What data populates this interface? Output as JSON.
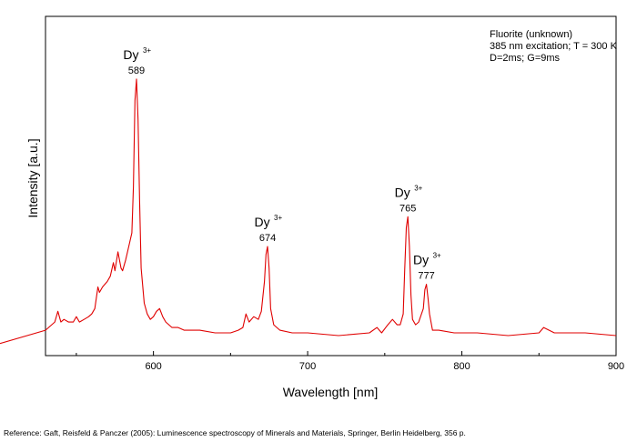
{
  "chart_data": {
    "type": "line",
    "xlabel": "Wavelength [nm]",
    "ylabel": "Intensity [a.u.]",
    "xlim": [
      530,
      900
    ],
    "ylim": [
      0,
      1.0
    ],
    "x_ticks": [
      600,
      700,
      800,
      900
    ],
    "grid": false,
    "legend": "none",
    "annotation_lines": [
      "Fluorite (unknown)",
      "385 nm excitation; T = 300 K",
      "D=2ms; G=9ms"
    ],
    "peak_labels": [
      {
        "ion": "Dy",
        "charge": "3+",
        "wavelength": "589",
        "x": 589,
        "y": 0.95
      },
      {
        "ion": "Dy",
        "charge": "3+",
        "wavelength": "674",
        "x": 674,
        "y": 0.33
      },
      {
        "ion": "Dy",
        "charge": "3+",
        "wavelength": "765",
        "x": 765,
        "y": 0.44
      },
      {
        "ion": "Dy",
        "charge": "3+",
        "wavelength": "777",
        "x": 777,
        "y": 0.19
      }
    ],
    "series": [
      {
        "color": "#e00000",
        "x": [
          500,
          530,
          536,
          538,
          540,
          542,
          545,
          548,
          550,
          552,
          555,
          558,
          560,
          562,
          564,
          565,
          567,
          570,
          572,
          574,
          575,
          577,
          579,
          580,
          582,
          584,
          586,
          587,
          588,
          589,
          590,
          591,
          592,
          594,
          596,
          598,
          600,
          602,
          604,
          606,
          608,
          612,
          616,
          620,
          630,
          640,
          650,
          655,
          658,
          660,
          662,
          665,
          668,
          670,
          672,
          673,
          674,
          675,
          676,
          678,
          682,
          690,
          700,
          720,
          740,
          745,
          748,
          752,
          755,
          758,
          760,
          762,
          763,
          764,
          765,
          766,
          767,
          768,
          770,
          772,
          775,
          776,
          777,
          778,
          779,
          781,
          785,
          795,
          810,
          830,
          850,
          853,
          860,
          880,
          900
        ],
        "y": [
          -0.03,
          0.02,
          0.05,
          0.09,
          0.05,
          0.06,
          0.05,
          0.05,
          0.07,
          0.05,
          0.06,
          0.07,
          0.08,
          0.1,
          0.18,
          0.16,
          0.18,
          0.2,
          0.22,
          0.27,
          0.24,
          0.31,
          0.25,
          0.24,
          0.28,
          0.33,
          0.38,
          0.55,
          0.87,
          0.95,
          0.8,
          0.5,
          0.25,
          0.12,
          0.08,
          0.06,
          0.07,
          0.09,
          0.1,
          0.07,
          0.05,
          0.03,
          0.03,
          0.02,
          0.02,
          0.01,
          0.01,
          0.02,
          0.03,
          0.08,
          0.05,
          0.07,
          0.06,
          0.09,
          0.2,
          0.3,
          0.33,
          0.25,
          0.1,
          0.04,
          0.02,
          0.01,
          0.01,
          0.0,
          0.01,
          0.03,
          0.01,
          0.04,
          0.06,
          0.04,
          0.04,
          0.08,
          0.25,
          0.4,
          0.44,
          0.33,
          0.15,
          0.06,
          0.04,
          0.05,
          0.1,
          0.17,
          0.19,
          0.14,
          0.08,
          0.02,
          0.02,
          0.01,
          0.01,
          0.0,
          0.01,
          0.03,
          0.01,
          0.01,
          0.0
        ]
      }
    ]
  },
  "reference": "Reference: Gaft, Reisfeld & Panczer (2005): Luminescence spectroscopy of Minerals and Materials, Springer, Berlin Heidelberg, 356 p."
}
